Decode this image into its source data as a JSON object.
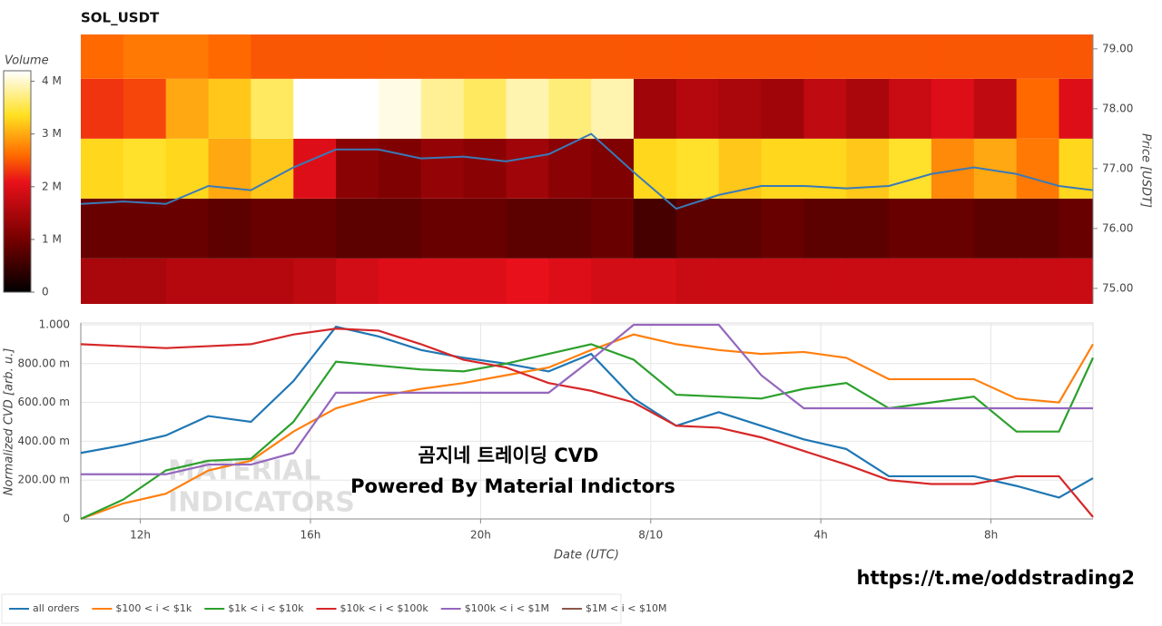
{
  "chart_data": [
    {
      "type": "heatmap",
      "title": "SOL_USDT",
      "y_label": "Price [USDT]",
      "colorbar_label": "Volume",
      "x": [
        10.6,
        11.6,
        12.6,
        13.6,
        14.6,
        15.6,
        16.6,
        17.6,
        18.6,
        19.6,
        20.6,
        21.6,
        22.6,
        23.6,
        24.6,
        25.6,
        26.6,
        27.6,
        28.6,
        29.6,
        30.6,
        31.6,
        32.6,
        33.6,
        34.4
      ],
      "xlim": [
        10.6,
        34.4
      ],
      "ybins": [
        74.5,
        75.5,
        76.5,
        77.5,
        78.5,
        79.5
      ],
      "ylim": [
        74.74,
        79.24
      ],
      "yticks": [
        {
          "value": 75,
          "label": "75.00"
        },
        {
          "value": 76,
          "label": "76.00"
        },
        {
          "value": 77,
          "label": "77.00"
        },
        {
          "value": 78,
          "label": "78.00"
        },
        {
          "value": 79,
          "label": "79.00"
        }
      ],
      "volume": [
        [
          1500000,
          1500000,
          1600000,
          1600000,
          1600000,
          1700000,
          1900000,
          2000000,
          2000000,
          2000000,
          2100000,
          2000000,
          1900000,
          1900000,
          1800000,
          1800000,
          1800000,
          1800000,
          1800000,
          1800000,
          1800000,
          1800000,
          1800000,
          1800000
        ],
        [
          900000,
          900000,
          900000,
          800000,
          900000,
          900000,
          800000,
          800000,
          900000,
          900000,
          800000,
          800000,
          900000,
          600000,
          800000,
          800000,
          900000,
          800000,
          800000,
          900000,
          900000,
          800000,
          800000,
          900000
        ],
        [
          3300000,
          3400000,
          3300000,
          3000000,
          3200000,
          2000000,
          1200000,
          1100000,
          1300000,
          1200000,
          1400000,
          1200000,
          1100000,
          3300000,
          3400000,
          3200000,
          3300000,
          3300000,
          3200000,
          3400000,
          2800000,
          3000000,
          2700000,
          3300000
        ],
        [
          2300000,
          2400000,
          3000000,
          3200000,
          3600000,
          4200000,
          4200000,
          4100000,
          3800000,
          3600000,
          3900000,
          3700000,
          3900000,
          1400000,
          1600000,
          1500000,
          1400000,
          1700000,
          1500000,
          1800000,
          2000000,
          1700000,
          2600000,
          2000000
        ],
        [
          2600000,
          2700000,
          2700000,
          2600000,
          2500000,
          2500000,
          2500000,
          2500000,
          2500000,
          2500000,
          2500000,
          2500000,
          2500000,
          2500000,
          2500000,
          2500000,
          2500000,
          2500000,
          2500000,
          2500000,
          2500000,
          2500000,
          2500000,
          2500000
        ]
      ],
      "zlim": [
        0,
        4200000
      ],
      "zticks": [
        0,
        {
          "value": 1000000,
          "label": "1 M"
        },
        {
          "value": 2000000,
          "label": "2 M"
        },
        {
          "value": 3000000,
          "label": "3 M"
        },
        {
          "value": 4000000,
          "label": "4 M"
        }
      ],
      "colorscale": [
        [
          0,
          "#000000"
        ],
        [
          0.25,
          "#7a0000"
        ],
        [
          0.5,
          "#e8101a"
        ],
        [
          0.62,
          "#ff6a00"
        ],
        [
          0.8,
          "#ffe020"
        ],
        [
          1,
          "#ffffff"
        ]
      ],
      "price": {
        "color": "#3a7ab8",
        "values": [
          76.41,
          76.45,
          76.41,
          76.71,
          76.64,
          77.02,
          77.32,
          77.32,
          77.17,
          77.2,
          77.12,
          77.24,
          77.58,
          76.94,
          76.33,
          76.56,
          76.71,
          76.71,
          76.67,
          76.71,
          76.91,
          77.02,
          76.91,
          76.71,
          76.64
        ]
      }
    },
    {
      "type": "line",
      "x_label": "Date (UTC)",
      "y_label": "Normalized CVD [arb. u.]",
      "x": [
        10.6,
        11.6,
        12.6,
        13.6,
        14.6,
        15.6,
        16.6,
        17.6,
        18.6,
        19.6,
        20.6,
        21.6,
        22.6,
        23.6,
        24.6,
        25.6,
        26.6,
        27.6,
        28.6,
        29.6,
        30.6,
        31.6,
        32.6,
        33.6,
        34.4
      ],
      "xlim": [
        10.6,
        34.4
      ],
      "xticks": [
        {
          "value": 12,
          "label": "12h"
        },
        {
          "value": 16,
          "label": "16h"
        },
        {
          "value": 20,
          "label": "20h"
        },
        {
          "value": 24,
          "label": "8/10"
        },
        {
          "value": 28,
          "label": "4h"
        },
        {
          "value": 32,
          "label": "8h"
        }
      ],
      "ylim": [
        0,
        1
      ],
      "yticks": [
        0,
        {
          "value": 0.2,
          "label": "200.00 m"
        },
        {
          "value": 0.4,
          "label": "400.00 m"
        },
        {
          "value": 0.6,
          "label": "600.00 m"
        },
        {
          "value": 0.8,
          "label": "800.00 m"
        },
        {
          "value": 1,
          "label": "1.000"
        }
      ],
      "grid": true,
      "series": [
        {
          "name": "all orders",
          "color": "#1f77b4",
          "values": [
            0.34,
            0.38,
            0.43,
            0.53,
            0.5,
            0.71,
            0.99,
            0.94,
            0.87,
            0.83,
            0.8,
            0.76,
            0.85,
            0.62,
            0.48,
            0.55,
            0.48,
            0.41,
            0.36,
            0.22,
            0.22,
            0.22,
            0.17,
            0.11,
            0.21
          ]
        },
        {
          "name": "$100 < i < $1k",
          "color": "#ff7f0e",
          "values": [
            0.0,
            0.08,
            0.13,
            0.25,
            0.3,
            0.45,
            0.57,
            0.63,
            0.67,
            0.7,
            0.74,
            0.78,
            0.87,
            0.95,
            0.9,
            0.87,
            0.85,
            0.86,
            0.83,
            0.72,
            0.72,
            0.72,
            0.62,
            0.6,
            0.9
          ]
        },
        {
          "name": "$1k < i < $10k",
          "color": "#2ca02c",
          "values": [
            0.0,
            0.1,
            0.25,
            0.3,
            0.31,
            0.5,
            0.81,
            0.79,
            0.77,
            0.76,
            0.8,
            0.85,
            0.9,
            0.82,
            0.64,
            0.63,
            0.62,
            0.67,
            0.7,
            0.57,
            0.6,
            0.63,
            0.45,
            0.45,
            0.83
          ]
        },
        {
          "name": "$10k < i < $100k",
          "color": "#d62728",
          "values": [
            0.9,
            0.89,
            0.88,
            0.89,
            0.9,
            0.95,
            0.98,
            0.97,
            0.9,
            0.82,
            0.78,
            0.7,
            0.66,
            0.6,
            0.48,
            0.47,
            0.42,
            0.35,
            0.28,
            0.2,
            0.18,
            0.18,
            0.22,
            0.22,
            0.01
          ]
        },
        {
          "name": "$100k < i < $1M",
          "color": "#9467bd",
          "values": [
            0.23,
            0.23,
            0.23,
            0.28,
            0.28,
            0.34,
            0.65,
            0.65,
            0.65,
            0.65,
            0.65,
            0.65,
            0.82,
            1.0,
            1.0,
            1.0,
            0.74,
            0.57,
            0.57,
            0.57,
            0.57,
            0.57,
            0.57,
            0.57,
            0.57
          ]
        },
        {
          "name": "$1M < i < $10M",
          "color": "#8c564b",
          "values": [
            null,
            null,
            null,
            null,
            null,
            null,
            null,
            null,
            null,
            null,
            null,
            null,
            null,
            null,
            null,
            null,
            null,
            null,
            null,
            null,
            null,
            null,
            null,
            null,
            null
          ]
        }
      ],
      "annotations": [
        "곰지네 트레이딩 CVD",
        "Powered By Material Indictors",
        "https://t.me/oddstrading2"
      ],
      "watermark": [
        "MATERIAL",
        "INDICATORS"
      ]
    }
  ]
}
